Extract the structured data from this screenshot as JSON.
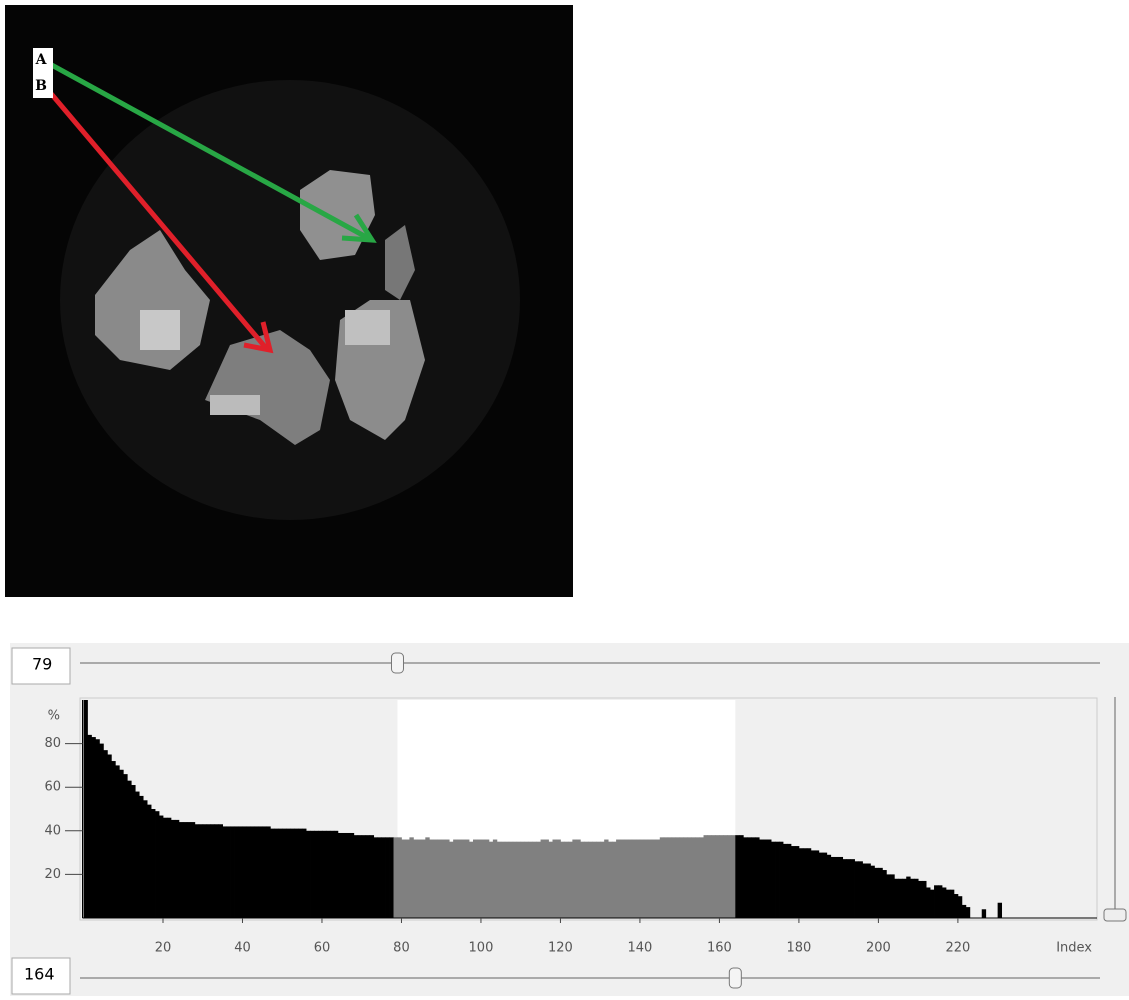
{
  "image": {
    "labels": [
      "A",
      "B"
    ]
  },
  "controls": {
    "lower": 79,
    "upper": 164
  },
  "chart_data": {
    "type": "histogram",
    "y_label": "%",
    "x_label": "Index",
    "xlim": [
      0,
      255
    ],
    "ylim": [
      0,
      100
    ],
    "xticks": [
      20,
      40,
      60,
      80,
      100,
      120,
      140,
      160,
      180,
      200,
      220
    ],
    "yticks": [
      20,
      40,
      60,
      80
    ],
    "color": "#000000",
    "highlight_color": "#808080",
    "bins": [
      0,
      1,
      2,
      3,
      4,
      5,
      6,
      7,
      8,
      9,
      10,
      11,
      12,
      13,
      14,
      15,
      16,
      17,
      18,
      19,
      20,
      21,
      22,
      23,
      24,
      25,
      26,
      27,
      28,
      29,
      30,
      31,
      32,
      33,
      34,
      35,
      36,
      37,
      38,
      39,
      40,
      41,
      42,
      43,
      44,
      45,
      46,
      47,
      48,
      49,
      50,
      51,
      52,
      53,
      54,
      55,
      56,
      57,
      58,
      59,
      60,
      61,
      62,
      63,
      64,
      65,
      66,
      67,
      68,
      69,
      70,
      71,
      72,
      73,
      74,
      75,
      76,
      77,
      78,
      79,
      80,
      81,
      82,
      83,
      84,
      85,
      86,
      87,
      88,
      89,
      90,
      91,
      92,
      93,
      94,
      95,
      96,
      97,
      98,
      99,
      100,
      101,
      102,
      103,
      104,
      105,
      106,
      107,
      108,
      109,
      110,
      111,
      112,
      113,
      114,
      115,
      116,
      117,
      118,
      119,
      120,
      121,
      122,
      123,
      124,
      125,
      126,
      127,
      128,
      129,
      130,
      131,
      132,
      133,
      134,
      135,
      136,
      137,
      138,
      139,
      140,
      141,
      142,
      143,
      144,
      145,
      146,
      147,
      148,
      149,
      150,
      151,
      152,
      153,
      154,
      155,
      156,
      157,
      158,
      159,
      160,
      161,
      162,
      163,
      164,
      165,
      166,
      167,
      168,
      169,
      170,
      171,
      172,
      173,
      174,
      175,
      176,
      177,
      178,
      179,
      180,
      181,
      182,
      183,
      184,
      185,
      186,
      187,
      188,
      189,
      190,
      191,
      192,
      193,
      194,
      195,
      196,
      197,
      198,
      199,
      200,
      201,
      202,
      203,
      204,
      205,
      206,
      207,
      208,
      209,
      210,
      211,
      212,
      213,
      214,
      215,
      216,
      217,
      218,
      219,
      220,
      221,
      222,
      223,
      224,
      225,
      226,
      227,
      228,
      229,
      230,
      231,
      232,
      233,
      234,
      235,
      236,
      237,
      238,
      239,
      240,
      241,
      242,
      243,
      244,
      245,
      246,
      247,
      248,
      249,
      250,
      251,
      252,
      253,
      254,
      255
    ],
    "values": [
      100,
      84,
      83,
      82,
      80,
      77,
      75,
      72,
      70,
      68,
      66,
      63,
      61,
      58,
      56,
      54,
      52,
      50,
      49,
      47,
      46,
      46,
      45,
      45,
      44,
      44,
      44,
      44,
      43,
      43,
      43,
      43,
      43,
      43,
      43,
      42,
      42,
      42,
      42,
      42,
      42,
      42,
      42,
      42,
      42,
      42,
      42,
      41,
      41,
      41,
      41,
      41,
      41,
      41,
      41,
      41,
      40,
      40,
      40,
      40,
      40,
      40,
      40,
      40,
      39,
      39,
      39,
      39,
      38,
      38,
      38,
      38,
      38,
      37,
      37,
      37,
      37,
      37,
      37,
      37,
      36,
      36,
      37,
      36,
      36,
      36,
      37,
      36,
      36,
      36,
      36,
      36,
      35,
      36,
      36,
      36,
      36,
      35,
      36,
      36,
      36,
      36,
      35,
      36,
      35,
      35,
      35,
      35,
      35,
      35,
      35,
      35,
      35,
      35,
      35,
      36,
      36,
      35,
      36,
      36,
      35,
      35,
      35,
      36,
      36,
      35,
      35,
      35,
      35,
      35,
      35,
      36,
      35,
      35,
      36,
      36,
      36,
      36,
      36,
      36,
      36,
      36,
      36,
      36,
      36,
      37,
      37,
      37,
      37,
      37,
      37,
      37,
      37,
      37,
      37,
      37,
      38,
      38,
      38,
      38,
      38,
      38,
      38,
      38,
      38,
      38,
      37,
      37,
      37,
      37,
      36,
      36,
      36,
      35,
      35,
      35,
      34,
      34,
      33,
      33,
      32,
      32,
      32,
      31,
      31,
      30,
      30,
      29,
      28,
      28,
      28,
      27,
      27,
      27,
      26,
      26,
      25,
      25,
      24,
      23,
      23,
      22,
      20,
      20,
      18,
      18,
      18,
      19,
      18,
      18,
      17,
      17,
      14,
      13,
      15,
      15,
      14,
      13,
      13,
      11,
      10,
      6,
      5,
      0,
      0,
      0,
      4,
      0,
      0,
      0,
      7,
      0,
      0,
      0,
      0,
      0,
      0,
      0,
      0,
      0,
      0,
      0,
      0,
      0,
      0,
      0,
      0,
      0,
      0,
      0,
      0,
      0,
      0,
      0,
      0
    ]
  }
}
